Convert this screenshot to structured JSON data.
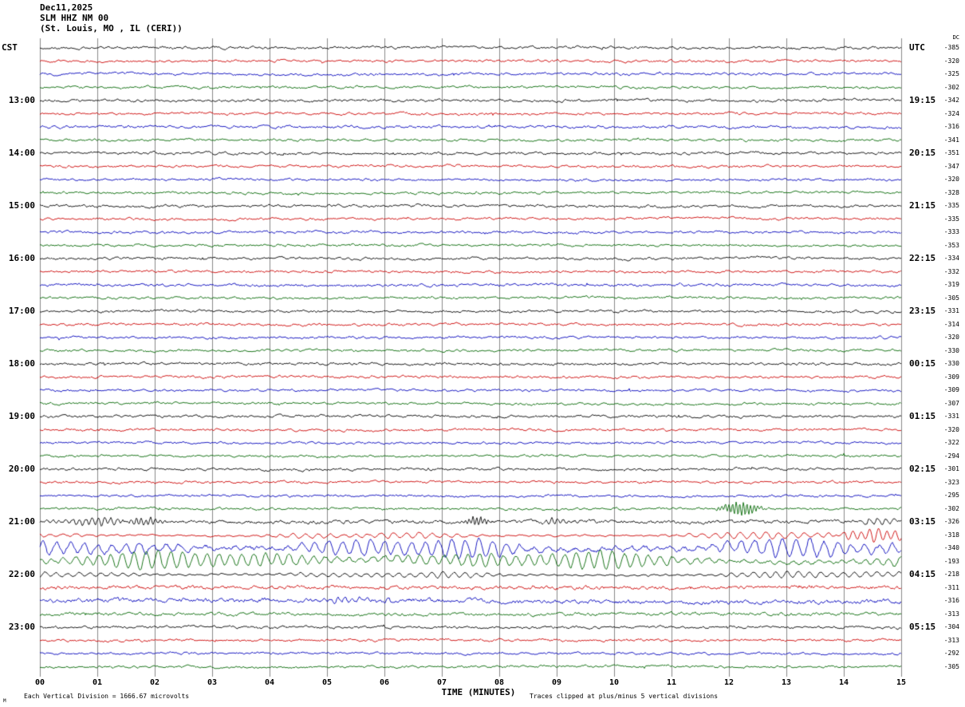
{
  "title": {
    "date": "Dec11,2025",
    "station": "SLM HHZ NM 00",
    "location": "(St. Louis, MO , IL (CERI))"
  },
  "axes": {
    "left_header": "CST",
    "right_header": "UTC",
    "dc_header": "DC",
    "x_label": "TIME (MINUTES)",
    "x_ticks": [
      "00",
      "01",
      "02",
      "03",
      "04",
      "05",
      "06",
      "07",
      "08",
      "09",
      "10",
      "11",
      "12",
      "13",
      "14",
      "15"
    ]
  },
  "footer": {
    "left": "Each Vertical Division = 1666.67 microvolts",
    "right": "Traces clipped at plus/minus 5 vertical divisions",
    "corner_mark": "M"
  },
  "colors": {
    "black": "#000000",
    "red": "#cc0000",
    "blue": "#0000bb",
    "green": "#006600",
    "grid": "#888888",
    "background": "#ffffff"
  },
  "chart_data": {
    "type": "line",
    "title": "SLM HHZ NM 00 helicorder (St. Louis, MO, IL CERI) Dec11,2025",
    "description": "48 consecutive 15-minute seismogram trace rows, colors cycling black/red/blue/green; left column CST hour, right column UTC time, far right per-trace DC offset. Large-amplitude signal 21:00-22:30 CST.",
    "x_range_minutes": [
      0,
      15
    ],
    "minutes_per_row": 15,
    "trace_color_cycle": [
      "black",
      "red",
      "blue",
      "green"
    ],
    "rows": [
      {
        "dc": -385,
        "amp": 1.9
      },
      {
        "dc": -320,
        "amp": 1.8
      },
      {
        "dc": -325,
        "amp": 1.8
      },
      {
        "dc": -302,
        "amp": 1.7
      },
      {
        "cst": "13:00",
        "utc": "19:15",
        "dc": -342,
        "amp": 2.0
      },
      {
        "dc": -324,
        "amp": 1.8
      },
      {
        "dc": -316,
        "amp": 1.9
      },
      {
        "dc": -341,
        "amp": 1.7
      },
      {
        "cst": "14:00",
        "utc": "20:15",
        "dc": -351,
        "amp": 1.9
      },
      {
        "dc": -347,
        "amp": 1.8
      },
      {
        "dc": -320,
        "amp": 1.7
      },
      {
        "dc": -328,
        "amp": 1.7
      },
      {
        "cst": "15:00",
        "utc": "21:15",
        "dc": -335,
        "amp": 1.9
      },
      {
        "dc": -335,
        "amp": 1.8
      },
      {
        "dc": -333,
        "amp": 1.8
      },
      {
        "dc": -353,
        "amp": 1.7
      },
      {
        "cst": "16:00",
        "utc": "22:15",
        "dc": -334,
        "amp": 1.9
      },
      {
        "dc": -332,
        "amp": 1.8
      },
      {
        "dc": -319,
        "amp": 2.0
      },
      {
        "dc": -305,
        "amp": 1.7
      },
      {
        "cst": "17:00",
        "utc": "23:15",
        "dc": -331,
        "amp": 1.9
      },
      {
        "dc": -314,
        "amp": 1.8
      },
      {
        "dc": -320,
        "amp": 1.7
      },
      {
        "dc": -330,
        "amp": 1.7
      },
      {
        "cst": "18:00",
        "utc": "00:15",
        "dc": -330,
        "amp": 1.9
      },
      {
        "dc": -309,
        "amp": 1.8
      },
      {
        "dc": -309,
        "amp": 1.7
      },
      {
        "dc": -307,
        "amp": 1.7
      },
      {
        "cst": "19:00",
        "utc": "01:15",
        "dc": -331,
        "amp": 1.9
      },
      {
        "dc": -320,
        "amp": 1.8
      },
      {
        "dc": -322,
        "amp": 1.7
      },
      {
        "dc": -294,
        "amp": 1.7
      },
      {
        "cst": "20:00",
        "utc": "02:15",
        "dc": -301,
        "amp": 1.9
      },
      {
        "dc": -323,
        "amp": 1.8
      },
      {
        "dc": -295,
        "amp": 1.7
      },
      {
        "dc": -302,
        "amp": 1.8,
        "events": [
          {
            "t": 12.2,
            "dur": 0.45,
            "amp": 8,
            "freq": 16
          }
        ]
      },
      {
        "cst": "21:00",
        "utc": "03:15",
        "dc": -326,
        "amp": 2.6,
        "events": [
          {
            "t": 1.0,
            "dur": 0.8,
            "amp": 4.5,
            "freq": 9
          },
          {
            "t": 1.8,
            "dur": 0.5,
            "amp": 4,
            "freq": 12
          },
          {
            "t": 7.6,
            "dur": 0.3,
            "amp": 5,
            "freq": 15
          },
          {
            "t": 9.0,
            "dur": 0.4,
            "amp": 3,
            "freq": 10
          },
          {
            "t": 14.6,
            "dur": 0.5,
            "amp": 4,
            "freq": 7
          }
        ]
      },
      {
        "dc": -318,
        "amp": 4.5,
        "style": "swell",
        "freq": 4.5,
        "events": [
          {
            "t": 14.6,
            "dur": 1.0,
            "amp": 7,
            "freq": 2.2
          }
        ]
      },
      {
        "dc": -340,
        "amp": 12.5,
        "style": "swell",
        "freq": 4.2
      },
      {
        "dc": -193,
        "amp": 9.5,
        "style": "swell",
        "freq": 4.8
      },
      {
        "cst": "22:00",
        "utc": "04:15",
        "dc": -218,
        "amp": 4.2,
        "style": "swell",
        "freq": 5.2
      },
      {
        "dc": -311,
        "amp": 2.6
      },
      {
        "dc": -316,
        "amp": 3.0,
        "events": [
          {
            "t": 5.5,
            "dur": 1.0,
            "amp": 2.5,
            "freq": 8
          }
        ]
      },
      {
        "dc": -313,
        "amp": 2.3
      },
      {
        "cst": "23:00",
        "utc": "05:15",
        "dc": -304,
        "amp": 1.9
      },
      {
        "dc": -313,
        "amp": 1.8
      },
      {
        "dc": -292,
        "amp": 1.7
      },
      {
        "dc": -305,
        "amp": 1.7
      }
    ]
  }
}
